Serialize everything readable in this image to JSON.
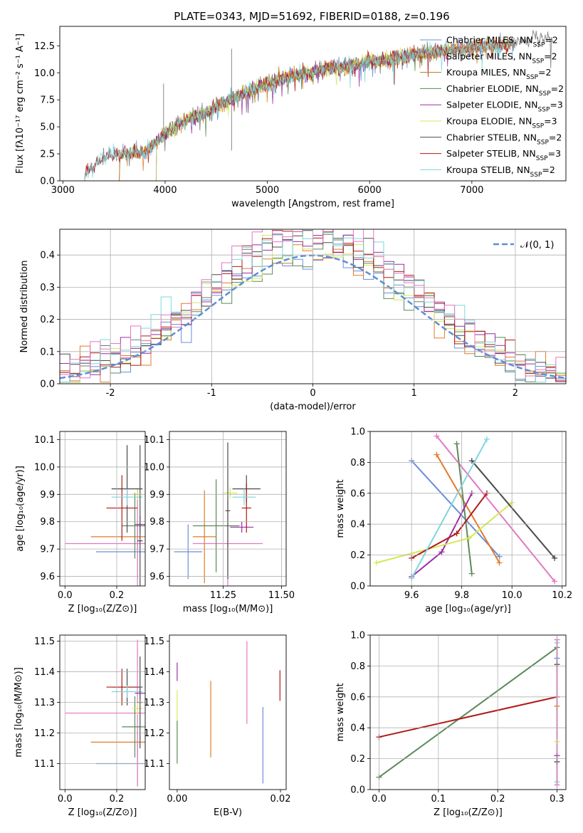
{
  "figure_title": "PLATE=0343, MJD=51692, FIBERID=0188, z=0.196",
  "colors": [
    "#6a8fd8",
    "#e07b2a",
    "#b07d1a",
    "#5a8a5a",
    "#9a2fa5",
    "#d6e85a",
    "#4a4a4a",
    "#b01a1a",
    "#7fd6dc",
    "#e377c2"
  ],
  "chart_data": [
    {
      "id": "spectrum",
      "type": "line",
      "title": "PLATE=0343, MJD=51692, FIBERID=0188, z=0.196",
      "xlabel": "wavelength [Angstrom, rest frame]",
      "ylabel": "Flux [fλ10⁻¹⁷ erg cm⁻² s⁻¹ A⁻¹]",
      "xlim": [
        2970,
        7920
      ],
      "ylim": [
        0,
        14.3
      ],
      "xticks": [
        3000,
        4000,
        5000,
        6000,
        7000
      ],
      "yticks": [
        0.0,
        2.5,
        5.0,
        7.5,
        10.0,
        12.5
      ],
      "grid": false,
      "legend_position": "right",
      "x": [
        3200,
        3400,
        3600,
        3800,
        4000,
        4200,
        4400,
        4600,
        4800,
        5000,
        5200,
        5400,
        5600,
        5800,
        6000,
        6200,
        6400,
        6600,
        6800,
        7000,
        7200,
        7400,
        7600,
        7800
      ],
      "data_flux": [
        0.5,
        2.2,
        2.5,
        2.7,
        4.3,
        5.6,
        6.3,
        7.4,
        8.2,
        9.0,
        9.6,
        10.0,
        10.4,
        10.6,
        11.0,
        11.2,
        11.6,
        11.9,
        12.2,
        12.3,
        12.5,
        12.7,
        13.3,
        13.0
      ],
      "series": [
        {
          "name": "Chabrier MILES, N$_{SSP}$=2",
          "start": 3540,
          "end": 7400
        },
        {
          "name": "Salpeter MILES, N$_{SSP}$=2",
          "start": 3540,
          "end": 7400
        },
        {
          "name": "Kroupa MILES, N$_{SSP}$=2",
          "start": 3540,
          "end": 7400
        },
        {
          "name": "Chabrier ELODIE, N$_{SSP}$=2",
          "start": 3900,
          "end": 6800
        },
        {
          "name": "Salpeter ELODIE, N$_{SSP}$=3",
          "start": 3900,
          "end": 6800
        },
        {
          "name": "Kroupa ELODIE, N$_{SSP}$=3",
          "start": 3900,
          "end": 6800
        },
        {
          "name": "Chabrier STELIB, N$_{SSP}$=2",
          "start": 3200,
          "end": 7800
        },
        {
          "name": "Salpeter STELIB, N$_{SSP}$=3",
          "start": 3200,
          "end": 7400
        },
        {
          "name": "Kroupa STELIB, N$_{SSP}$=2",
          "start": 3200,
          "end": 7400
        }
      ]
    },
    {
      "id": "residuals",
      "type": "line",
      "xlabel": "(data-model)/error",
      "ylabel": "Normed distribution",
      "xlim": [
        -2.5,
        2.5
      ],
      "ylim": [
        0,
        0.48
      ],
      "xticks": [
        -2,
        -1,
        0,
        1,
        2
      ],
      "yticks": [
        0.0,
        0.1,
        0.2,
        0.3,
        0.4
      ],
      "grid": true,
      "legend_position": "top-right",
      "reference_curve": "𝒩(0, 1)",
      "bin_width": 0.1
    },
    {
      "id": "age_vs_Z",
      "type": "scatter",
      "xlabel": "Z [log₁₀(Z/Z⊙)]",
      "ylabel": "age  [log₁₀(age/yr)]",
      "xlim": [
        -0.02,
        0.31
      ],
      "ylim": [
        9.565,
        10.13
      ],
      "xticks": [
        0.0,
        0.2
      ],
      "yticks": [
        9.6,
        9.7,
        9.8,
        9.9,
        10.0,
        10.1
      ],
      "grid": true,
      "points": [
        {
          "x": 0.28,
          "y": 9.69,
          "xerr": 0.16,
          "yerr": 0.1
        },
        {
          "x": 0.28,
          "y": 9.745,
          "xerr": 0.18,
          "yerr": 0.05
        },
        {
          "x": 0.28,
          "y": 9.72,
          "xerr": 0.28,
          "yerr": 0.2
        },
        {
          "x": 0.27,
          "y": 9.785,
          "xerr": 0.05,
          "yerr": 0.12
        },
        {
          "x": 0.29,
          "y": 9.79,
          "xerr": 0.02,
          "yerr": 0.03
        },
        {
          "x": 0.28,
          "y": 9.9,
          "xerr": 0.02,
          "yerr": 0.02
        },
        {
          "x": 0.24,
          "y": 9.92,
          "xerr": 0.06,
          "yerr": 0.16
        },
        {
          "x": 0.22,
          "y": 9.85,
          "xerr": 0.06,
          "yerr": 0.12
        },
        {
          "x": 0.24,
          "y": 9.89,
          "xerr": 0.06,
          "yerr": 0.03
        },
        {
          "x": 0.29,
          "y": 9.73,
          "xerr": 0.01,
          "yerr": 0.35
        }
      ]
    },
    {
      "id": "age_vs_mass",
      "type": "scatter",
      "xlabel": "mass [log₁₀(M/M⊙)]",
      "ylabel": "",
      "xlim": [
        11.02,
        11.52
      ],
      "ylim": [
        9.565,
        10.13
      ],
      "xticks": [
        11.25,
        11.5
      ],
      "yticks": [
        9.6,
        9.7,
        9.8,
        9.9,
        10.0,
        10.1
      ],
      "grid": true,
      "points": [
        {
          "x": 11.1,
          "y": 9.69,
          "xerr": 0.06,
          "yerr": 0.1
        },
        {
          "x": 11.17,
          "y": 9.745,
          "xerr": 0.05,
          "yerr": 0.17
        },
        {
          "x": 11.27,
          "y": 9.72,
          "xerr": 0.15,
          "yerr": 0.16
        },
        {
          "x": 11.22,
          "y": 9.785,
          "xerr": 0.1,
          "yerr": 0.17
        },
        {
          "x": 11.33,
          "y": 9.78,
          "xerr": 0.05,
          "yerr": 0.02
        },
        {
          "x": 11.28,
          "y": 9.905,
          "xerr": 0.03,
          "yerr": 0.02
        },
        {
          "x": 11.35,
          "y": 9.92,
          "xerr": 0.06,
          "yerr": 0.05
        },
        {
          "x": 11.35,
          "y": 9.85,
          "xerr": 0.02,
          "yerr": 0.09
        },
        {
          "x": 11.34,
          "y": 9.89,
          "xerr": 0.05,
          "yerr": 0.03
        },
        {
          "x": 11.27,
          "y": 9.84,
          "xerr": 0.01,
          "yerr": 0.25
        }
      ]
    },
    {
      "id": "weight_vs_age",
      "type": "line",
      "xlabel": "age  [log₁₀(age/yr)]",
      "ylabel": "mass weight",
      "xlim": [
        9.435,
        10.215
      ],
      "ylim": [
        0.0,
        1.0
      ],
      "xticks": [
        9.6,
        9.8,
        10.0,
        10.2
      ],
      "yticks": [
        0.0,
        0.2,
        0.4,
        0.6,
        0.8,
        1.0
      ],
      "grid": true,
      "series": [
        {
          "ages": [
            9.6,
            9.95
          ],
          "weights": [
            0.81,
            0.19
          ]
        },
        {
          "ages": [
            9.7,
            9.95
          ],
          "weights": [
            0.85,
            0.15
          ]
        },
        {
          "ages": [
            9.7,
            10.17
          ],
          "weights": [
            0.97,
            0.03
          ]
        },
        {
          "ages": [
            9.78,
            9.84
          ],
          "weights": [
            0.92,
            0.08
          ]
        },
        {
          "ages": [
            9.6,
            9.72,
            9.84
          ],
          "weights": [
            0.06,
            0.22,
            0.6
          ]
        },
        {
          "ages": [
            9.46,
            9.83,
            10.0
          ],
          "weights": [
            0.15,
            0.31,
            0.54
          ]
        },
        {
          "ages": [
            9.84,
            10.17
          ],
          "weights": [
            0.81,
            0.18
          ]
        },
        {
          "ages": [
            9.6,
            9.78,
            9.9
          ],
          "weights": [
            0.18,
            0.34,
            0.6
          ]
        },
        {
          "ages": [
            9.6,
            9.9
          ],
          "weights": [
            0.05,
            0.95
          ]
        }
      ]
    },
    {
      "id": "mass_vs_Z",
      "type": "scatter",
      "xlabel": "Z [log₁₀(Z/Z⊙)]",
      "ylabel": "mass [log₁₀(M/M⊙)]",
      "xlim": [
        -0.02,
        0.31
      ],
      "ylim": [
        11.015,
        11.52
      ],
      "xticks": [
        0.0,
        0.2
      ],
      "yticks": [
        11.1,
        11.2,
        11.3,
        11.4,
        11.5
      ],
      "grid": true,
      "points": [
        {
          "x": 0.28,
          "y": 11.1,
          "xerr": 0.16,
          "yerr": 0.07
        },
        {
          "x": 0.28,
          "y": 11.17,
          "xerr": 0.18,
          "yerr": 0.05
        },
        {
          "x": 0.28,
          "y": 11.265,
          "xerr": 0.28,
          "yerr": 0.24
        },
        {
          "x": 0.27,
          "y": 11.22,
          "xerr": 0.05,
          "yerr": 0.1
        },
        {
          "x": 0.29,
          "y": 11.33,
          "xerr": 0.02,
          "yerr": 0.02
        },
        {
          "x": 0.28,
          "y": 11.28,
          "xerr": 0.02,
          "yerr": 0.02
        },
        {
          "x": 0.24,
          "y": 11.35,
          "xerr": 0.06,
          "yerr": 0.06
        },
        {
          "x": 0.22,
          "y": 11.35,
          "xerr": 0.06,
          "yerr": 0.06
        },
        {
          "x": 0.24,
          "y": 11.335,
          "xerr": 0.06,
          "yerr": 0.02
        },
        {
          "x": 0.29,
          "y": 11.3,
          "xerr": 0.01,
          "yerr": 0.15
        }
      ]
    },
    {
      "id": "mass_vs_EBV",
      "type": "scatter",
      "xlabel": "E(B-V)",
      "ylabel": "",
      "xlim": [
        -0.0015,
        0.0211
      ],
      "ylim": [
        11.015,
        11.52
      ],
      "xticks": [
        0.0,
        0.02
      ],
      "yticks": [
        11.1,
        11.2,
        11.3,
        11.4,
        11.5
      ],
      "grid": false,
      "points": [
        {
          "x": 0.0,
          "y": 11.4,
          "yerr": 0.03
        },
        {
          "x": 0.0,
          "y": 11.27,
          "yerr": 0.07
        },
        {
          "x": 0.0,
          "y": 11.17,
          "yerr": 0.07
        },
        {
          "x": 0.0065,
          "y": 11.245,
          "yerr": 0.125
        },
        {
          "x": 0.0135,
          "y": 11.365,
          "yerr": 0.135
        },
        {
          "x": 0.0166,
          "y": 11.16,
          "yerr": 0.125
        },
        {
          "x": 0.0199,
          "y": 11.355,
          "yerr": 0.05
        }
      ]
    },
    {
      "id": "weight_vs_Z",
      "type": "line",
      "xlabel": "Z [log₁₀(Z/Z⊙)]",
      "ylabel": "mass weight",
      "xlim": [
        -0.015,
        0.315
      ],
      "ylim": [
        0.0,
        1.0
      ],
      "xticks": [
        0.0,
        0.1,
        0.2,
        0.3
      ],
      "yticks": [
        0.0,
        0.2,
        0.4,
        0.6,
        0.8,
        1.0
      ],
      "grid": true,
      "series": [
        {
          "Z": [
            0.0,
            0.3
          ],
          "weights": [
            0.08,
            0.92
          ],
          "color": "#5a8a5a"
        },
        {
          "Z": [
            0.0,
            0.3
          ],
          "weights": [
            0.34,
            0.6
          ],
          "color": "#b01a1a"
        },
        {
          "Z": [
            0.3,
            0.3
          ],
          "weights": [
            0.05,
            0.95
          ],
          "color": "#7fd6dc"
        },
        {
          "Z": [
            0.3,
            0.3
          ],
          "weights": [
            0.03,
            0.97
          ],
          "color": "#e377c2"
        }
      ]
    }
  ]
}
